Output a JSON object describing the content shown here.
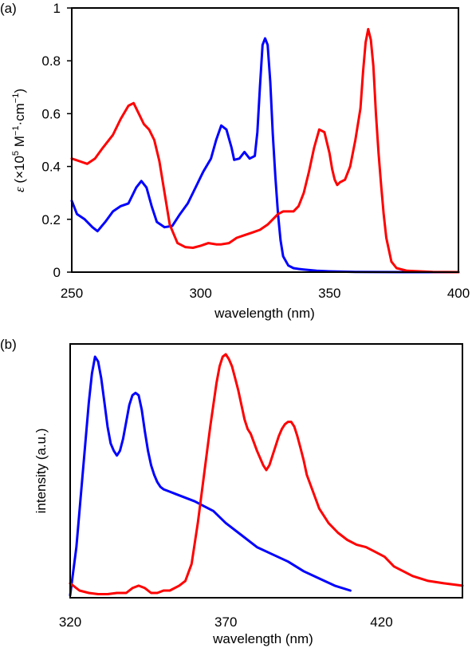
{
  "chart_data": [
    {
      "type": "line",
      "panel_label": "(a)",
      "xlabel": "wavelength (nm)",
      "ylabel_var": "ε",
      "ylabel_paren_open": " (×10",
      "ylabel_exp5": "5",
      "ylabel_unitM": " M",
      "ylabel_expm1a": "−1",
      "ylabel_dot_cm": "·cm",
      "ylabel_expm1b": "−1",
      "ylabel_close": ")",
      "xlim": [
        250,
        400
      ],
      "ylim": [
        0,
        1
      ],
      "xticks": [
        "250",
        "300",
        "350",
        "400"
      ],
      "yticks": [
        "0",
        "0.2",
        "0.4",
        "0.6",
        "0.8",
        "1"
      ],
      "grid": false,
      "series": [
        {
          "color": "#0000ff",
          "x": [
            250,
            252,
            255,
            258,
            260,
            263,
            266,
            269,
            272,
            275,
            277,
            279,
            281,
            283,
            286,
            289,
            292,
            295,
            298,
            301,
            304,
            306,
            308,
            310,
            312,
            313,
            315,
            317,
            319,
            321,
            322,
            323,
            324,
            325,
            326,
            327,
            328,
            329,
            330,
            331,
            332,
            334,
            336,
            338,
            340,
            345,
            350,
            360,
            380,
            400
          ],
          "y": [
            0.27,
            0.22,
            0.2,
            0.17,
            0.155,
            0.19,
            0.23,
            0.25,
            0.26,
            0.32,
            0.345,
            0.32,
            0.25,
            0.19,
            0.17,
            0.175,
            0.22,
            0.26,
            0.32,
            0.38,
            0.43,
            0.5,
            0.555,
            0.54,
            0.47,
            0.425,
            0.43,
            0.455,
            0.43,
            0.44,
            0.53,
            0.7,
            0.86,
            0.885,
            0.86,
            0.72,
            0.52,
            0.36,
            0.22,
            0.12,
            0.06,
            0.025,
            0.015,
            0.012,
            0.01,
            0.005,
            0.003,
            0.001,
            0.0,
            0.0
          ]
        },
        {
          "color": "#ff0000",
          "x": [
            250,
            253,
            256,
            259,
            262,
            266,
            269,
            272,
            274,
            276,
            278,
            280,
            282,
            284,
            286,
            288,
            291,
            294,
            297,
            300,
            303,
            306,
            308,
            311,
            314,
            317,
            320,
            323,
            326,
            328,
            330,
            332,
            334,
            336,
            338,
            340,
            342,
            344,
            346,
            348,
            350,
            351,
            352,
            353,
            354,
            356,
            358,
            360,
            362,
            363,
            364,
            365,
            366,
            367,
            368,
            369,
            370,
            371,
            372,
            374,
            376,
            380,
            385,
            390,
            400
          ],
          "y": [
            0.43,
            0.42,
            0.41,
            0.43,
            0.47,
            0.52,
            0.58,
            0.63,
            0.64,
            0.6,
            0.56,
            0.54,
            0.5,
            0.42,
            0.3,
            0.18,
            0.11,
            0.095,
            0.092,
            0.1,
            0.11,
            0.105,
            0.105,
            0.11,
            0.13,
            0.14,
            0.15,
            0.16,
            0.18,
            0.2,
            0.22,
            0.23,
            0.23,
            0.23,
            0.25,
            0.3,
            0.38,
            0.47,
            0.54,
            0.53,
            0.45,
            0.39,
            0.35,
            0.33,
            0.34,
            0.35,
            0.4,
            0.5,
            0.62,
            0.76,
            0.87,
            0.92,
            0.88,
            0.78,
            0.6,
            0.45,
            0.33,
            0.22,
            0.13,
            0.04,
            0.015,
            0.005,
            0.003,
            0.001,
            0.0
          ]
        }
      ]
    },
    {
      "type": "line",
      "panel_label": "(b)",
      "xlabel": "wavelength (nm)",
      "ylabel": "intensity (a.u.)",
      "xlim": [
        320,
        446
      ],
      "ylim": [
        0,
        1
      ],
      "xticks": [
        "320",
        "370",
        "420"
      ],
      "yticks": [],
      "grid": false,
      "series": [
        {
          "color": "#0000ff",
          "x": [
            320,
            322,
            324,
            326,
            327,
            328,
            329,
            330,
            331,
            332,
            333,
            334,
            335,
            336,
            337,
            338,
            339,
            340,
            341,
            342,
            343,
            344,
            345,
            346,
            347,
            348,
            349,
            350,
            352,
            354,
            356,
            358,
            360,
            363,
            366,
            370,
            375,
            380,
            385,
            390,
            395,
            400,
            405,
            410
          ],
          "y": [
            0.0,
            0.2,
            0.5,
            0.8,
            0.92,
            0.99,
            0.97,
            0.9,
            0.8,
            0.7,
            0.63,
            0.6,
            0.58,
            0.6,
            0.65,
            0.72,
            0.79,
            0.83,
            0.84,
            0.83,
            0.77,
            0.68,
            0.6,
            0.54,
            0.5,
            0.47,
            0.45,
            0.44,
            0.43,
            0.42,
            0.41,
            0.4,
            0.39,
            0.37,
            0.35,
            0.3,
            0.25,
            0.2,
            0.17,
            0.14,
            0.1,
            0.07,
            0.04,
            0.02
          ]
        },
        {
          "color": "#ff0000",
          "x": [
            320,
            323,
            326,
            329,
            332,
            335,
            338,
            340,
            342,
            344,
            346,
            348,
            350,
            352,
            355,
            357,
            359,
            361,
            363,
            365,
            367,
            368,
            369,
            370,
            371,
            372,
            373,
            374,
            375,
            376,
            377,
            378,
            380,
            382,
            383,
            384,
            385,
            386,
            387,
            388,
            389,
            390,
            391,
            392,
            393,
            394,
            395,
            396,
            398,
            400,
            403,
            406,
            409,
            412,
            415,
            418,
            421,
            424,
            427,
            430,
            435,
            440,
            446
          ],
          "y": [
            0.05,
            0.02,
            0.01,
            0.005,
            0.005,
            0.01,
            0.01,
            0.03,
            0.04,
            0.03,
            0.01,
            0.01,
            0.02,
            0.02,
            0.04,
            0.06,
            0.13,
            0.3,
            0.5,
            0.7,
            0.88,
            0.95,
            0.99,
            1.0,
            0.98,
            0.95,
            0.9,
            0.85,
            0.79,
            0.73,
            0.69,
            0.67,
            0.6,
            0.54,
            0.52,
            0.54,
            0.58,
            0.62,
            0.66,
            0.69,
            0.71,
            0.72,
            0.72,
            0.7,
            0.66,
            0.61,
            0.56,
            0.5,
            0.43,
            0.36,
            0.3,
            0.26,
            0.23,
            0.21,
            0.2,
            0.18,
            0.16,
            0.12,
            0.1,
            0.08,
            0.06,
            0.05,
            0.04
          ]
        }
      ]
    }
  ]
}
